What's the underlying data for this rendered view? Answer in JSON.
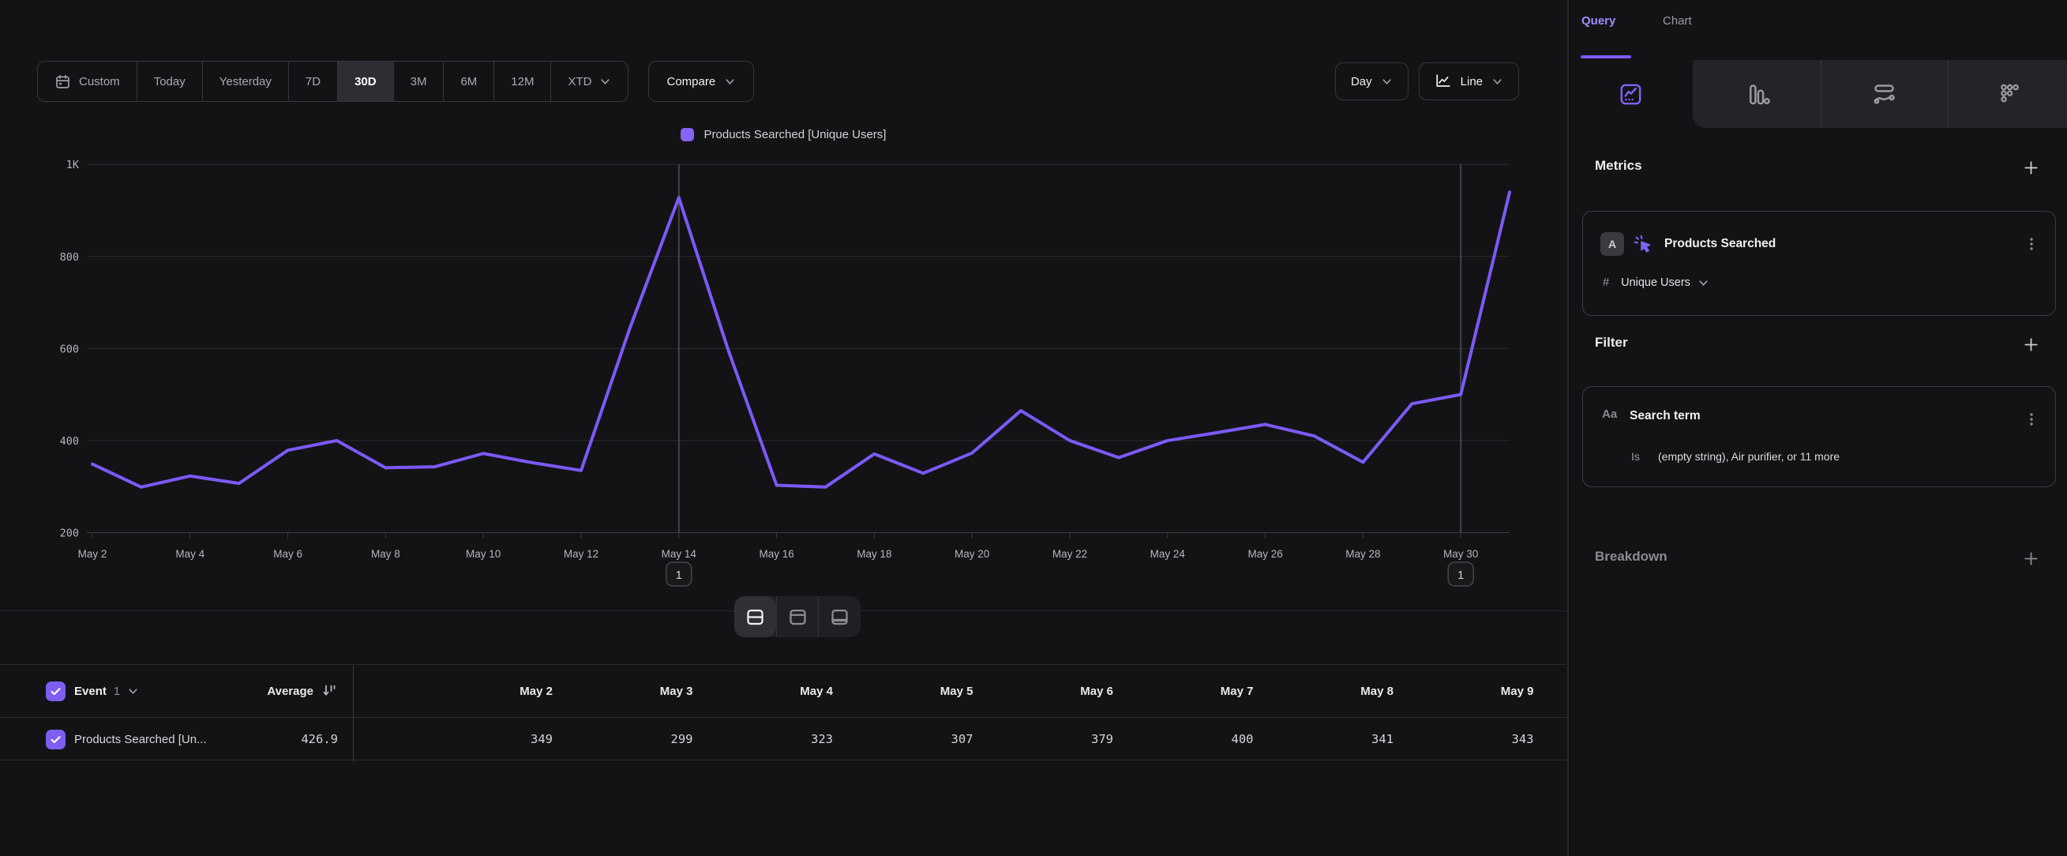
{
  "toolbar": {
    "custom_label": "Custom",
    "ranges": [
      {
        "label": "Today"
      },
      {
        "label": "Yesterday"
      },
      {
        "label": "7D"
      },
      {
        "label": "30D",
        "active": true
      },
      {
        "label": "3M"
      },
      {
        "label": "6M"
      },
      {
        "label": "12M"
      },
      {
        "label": "XTD",
        "dropdown": true
      }
    ],
    "compare_label": "Compare",
    "granularity_label": "Day",
    "chart_type_label": "Line"
  },
  "legend": {
    "series_label": "Products Searched [Unique Users]",
    "swatch_color": "#8464f4"
  },
  "chart_data": {
    "type": "line",
    "series_name": "Products Searched [Unique Users]",
    "x": [
      "May 2",
      "May 3",
      "May 4",
      "May 5",
      "May 6",
      "May 7",
      "May 8",
      "May 9",
      "May 10",
      "May 11",
      "May 12",
      "May 13",
      "May 14",
      "May 15",
      "May 16",
      "May 17",
      "May 18",
      "May 19",
      "May 20",
      "May 21",
      "May 22",
      "May 23",
      "May 24",
      "May 25",
      "May 26",
      "May 27",
      "May 28",
      "May 29",
      "May 30",
      "May 31"
    ],
    "values": [
      349,
      299,
      323,
      307,
      379,
      400,
      341,
      343,
      372,
      352,
      335,
      645,
      928,
      600,
      303,
      299,
      371,
      329,
      373,
      465,
      400,
      363,
      400,
      417,
      435,
      410,
      353,
      480,
      500,
      940
    ],
    "ylim": [
      200,
      1000
    ],
    "y_ticks": [
      {
        "value": 200,
        "label": "200"
      },
      {
        "value": 400,
        "label": "400"
      },
      {
        "value": 600,
        "label": "600"
      },
      {
        "value": 800,
        "label": "800"
      },
      {
        "value": 1000,
        "label": "1K"
      }
    ],
    "x_tick_every": 2,
    "grid": true,
    "legend_position": "top-center",
    "line_color": "#7c5af7",
    "annotations": [
      {
        "x_label": "May 14",
        "badge": "1"
      },
      {
        "x_label": "May 30",
        "badge": "1"
      }
    ]
  },
  "layout_toggle": {
    "options": [
      "split-view",
      "chart-view",
      "table-view"
    ],
    "active": "split-view"
  },
  "table": {
    "event_label": "Event",
    "event_count": "1",
    "average_label": "Average",
    "row_name": "Products Searched [Un...",
    "average_value": "426.9",
    "columns": [
      "May 2",
      "May 3",
      "May 4",
      "May 5",
      "May 6",
      "May 7",
      "May 8",
      "May 9"
    ],
    "values": [
      "349",
      "299",
      "323",
      "307",
      "379",
      "400",
      "341",
      "343"
    ]
  },
  "sidebar": {
    "tabs": [
      {
        "label": "Query",
        "active": true
      },
      {
        "label": "Chart",
        "active": false
      }
    ],
    "icon_tabs": [
      "insights-line-chart",
      "bar-chart",
      "flows",
      "retention"
    ],
    "metrics": {
      "heading": "Metrics",
      "add_label": "+",
      "items": [
        {
          "letter": "A",
          "name": "Products Searched",
          "measure_prefix": "#",
          "measure": "Unique Users"
        }
      ]
    },
    "filter": {
      "heading": "Filter",
      "add_label": "+",
      "items": [
        {
          "icon": "Aa",
          "name": "Search term",
          "operator": "Is",
          "value": "(empty string), Air purifier, or 11 more"
        }
      ]
    },
    "breakdown": {
      "heading": "Breakdown",
      "add_label": "+"
    }
  },
  "colors": {
    "accent_purple": "#7c5af7",
    "legend_swatch": "#8464f4",
    "checkbox_purple": "#7e5ef0",
    "active_tab_text": "#9e8cfa",
    "background": "#131316"
  }
}
